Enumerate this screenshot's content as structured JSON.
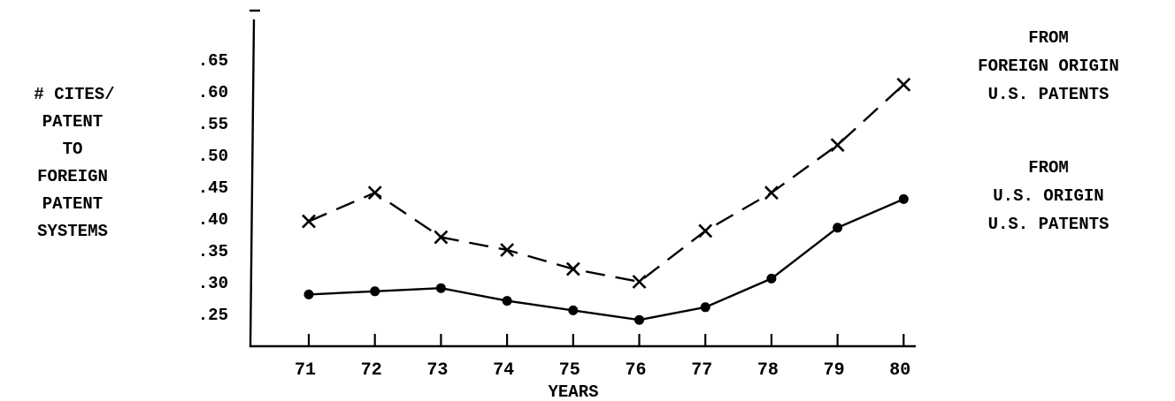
{
  "chart_data": {
    "type": "line",
    "x": [
      71,
      72,
      73,
      74,
      75,
      76,
      77,
      78,
      79,
      80
    ],
    "xlabel": "YEARS",
    "ylabel_lines": [
      "# CITES/",
      "PATENT",
      "TO",
      "FOREIGN",
      "PATENT",
      "SYSTEMS"
    ],
    "y_ticks": [
      ".25",
      ".30",
      ".35",
      ".40",
      ".45",
      ".50",
      ".55",
      ".60",
      ".65"
    ],
    "ylim": [
      0.2,
      0.72
    ],
    "grid": false,
    "series": [
      {
        "name": "FROM FOREIGN ORIGIN U.S. PATENTS",
        "label_lines": [
          "FROM",
          "FOREIGN ORIGIN",
          "U.S. PATENTS"
        ],
        "marker": "x",
        "line_style": "dashed",
        "values": [
          0.395,
          0.44,
          0.37,
          0.35,
          0.32,
          0.3,
          0.38,
          0.44,
          0.515,
          0.61
        ]
      },
      {
        "name": "FROM U.S. ORIGIN U.S. PATENTS",
        "label_lines": [
          "FROM",
          "U.S. ORIGIN",
          "U.S. PATENTS"
        ],
        "marker": "dot",
        "line_style": "solid",
        "values": [
          0.28,
          0.285,
          0.29,
          0.27,
          0.255,
          0.24,
          0.26,
          0.305,
          0.385,
          0.43
        ]
      }
    ]
  }
}
